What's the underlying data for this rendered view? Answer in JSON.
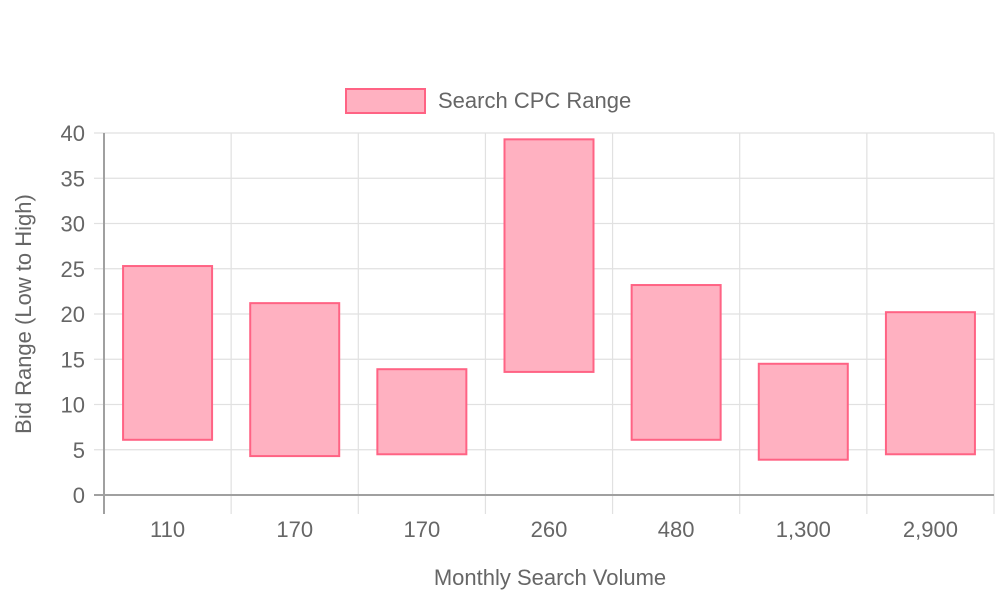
{
  "chart_data": {
    "type": "bar",
    "subtype": "floating-range",
    "categories": [
      "110",
      "170",
      "170",
      "260",
      "480",
      "1,300",
      "2,900"
    ],
    "series": [
      {
        "name": "Search CPC Range",
        "ranges": [
          [
            6.1,
            25.3
          ],
          [
            4.3,
            21.2
          ],
          [
            4.5,
            13.9
          ],
          [
            13.6,
            39.3
          ],
          [
            6.1,
            23.2
          ],
          [
            3.9,
            14.5
          ],
          [
            4.5,
            20.2
          ]
        ],
        "color": "#ffb1c1",
        "border_color": "#ff6384"
      }
    ],
    "xlabel": "Monthly Search Volume",
    "ylabel": "Bid Range (Low to High)",
    "ylim": [
      0,
      40
    ],
    "yticks": [
      "0",
      "5",
      "10",
      "15",
      "20",
      "25",
      "30",
      "35",
      "40"
    ],
    "grid": true,
    "legend_position": "top"
  }
}
